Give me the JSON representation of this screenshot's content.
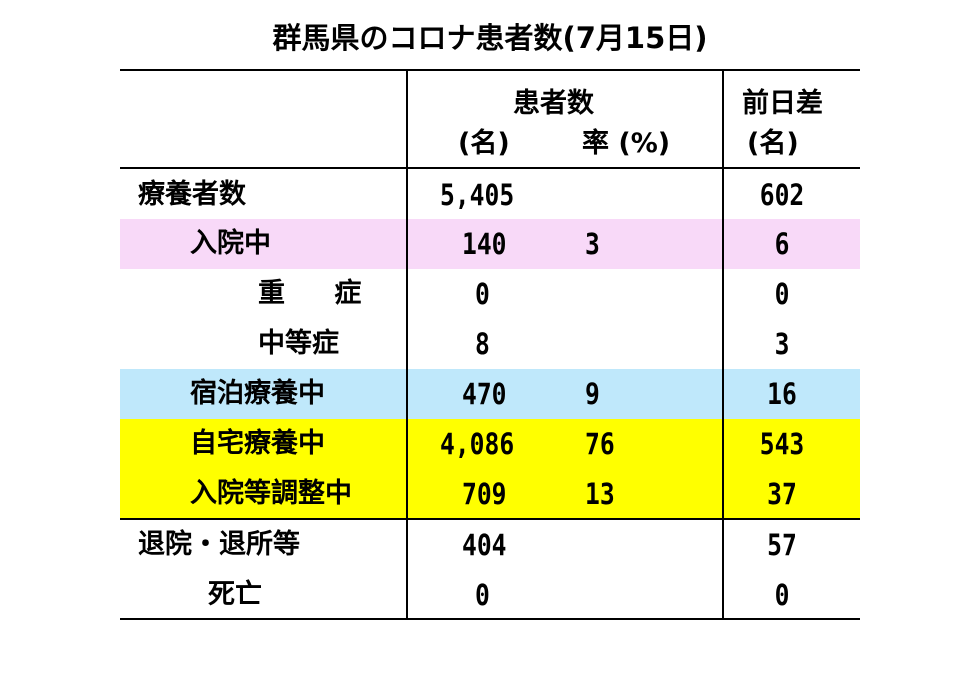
{
  "title": "群馬県のコロナ患者数(7月15日)",
  "header": {
    "patients": "患者数",
    "count_unit": "(名)",
    "rate_unit": "率 (%)",
    "diff": "前日差",
    "diff_unit": "(名)"
  },
  "rows": [
    {
      "label": "療養者数",
      "count": "5,405",
      "rate": "",
      "diff": "602"
    },
    {
      "label": "入院中",
      "count": "140",
      "rate": "3",
      "diff": "6"
    },
    {
      "label": "重 症",
      "count": "0",
      "rate": "",
      "diff": "0"
    },
    {
      "label": "中等症",
      "count": "8",
      "rate": "",
      "diff": "3"
    },
    {
      "label": "宿泊療養中",
      "count": "470",
      "rate": "9",
      "diff": "16"
    },
    {
      "label": "自宅療養中",
      "count": "4,086",
      "rate": "76",
      "diff": "543"
    },
    {
      "label": "入院等調整中",
      "count": "709",
      "rate": "13",
      "diff": "37"
    },
    {
      "label": "退院・退所等",
      "count": "404",
      "rate": "",
      "diff": "57"
    },
    {
      "label": "死亡",
      "count": "0",
      "rate": "",
      "diff": "0"
    }
  ],
  "colors": {
    "hospitalized": "#f8d9f8",
    "hotel": "#bfe8fb",
    "home": "#ffff00"
  }
}
